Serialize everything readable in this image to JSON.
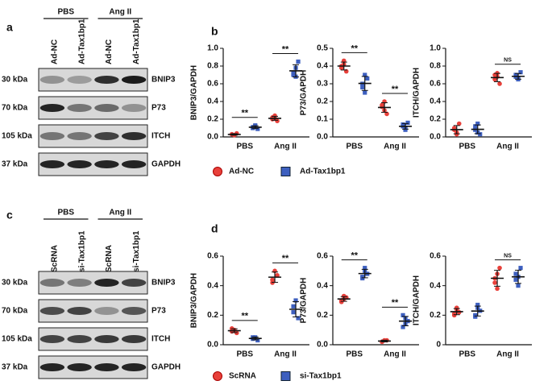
{
  "figure_labels": [
    "a",
    "b",
    "c",
    "d"
  ],
  "blots": [
    {
      "groups": [
        "PBS",
        "Ang II"
      ],
      "lanes": [
        "Ad-NC",
        "Ad-Tax1bp1",
        "Ad-NC",
        "Ad-Tax1bp1"
      ],
      "rows": [
        {
          "size": "30 kDa",
          "protein": "BNIP3"
        },
        {
          "size": "70 kDa",
          "protein": "P73"
        },
        {
          "size": "105 kDa",
          "protein": "ITCH"
        },
        {
          "size": "37 kDa",
          "protein": "GAPDH"
        }
      ]
    },
    {
      "groups": [
        "PBS",
        "Ang II"
      ],
      "lanes": [
        "ScRNA",
        "si-Tax1bp1",
        "ScRNA",
        "si-Tax1bp1"
      ],
      "rows": [
        {
          "size": "30 kDa",
          "protein": "BNIP3"
        },
        {
          "size": "70 kDa",
          "protein": "P73"
        },
        {
          "size": "105 kDa",
          "protein": "ITCH"
        },
        {
          "size": "37 kDa",
          "protein": "GAPDH"
        }
      ]
    }
  ],
  "chart_data": [
    {
      "type": "dot",
      "y_label": "BNIP3/GAPDH",
      "categories": [
        "PBS",
        "Ang II"
      ],
      "ylim": [
        0,
        1.0
      ],
      "yticks": [
        {
          "value": 0,
          "label": "0.0"
        },
        0.2,
        0.4,
        0.6,
        0.8,
        {
          "value": 1,
          "label": "1.0"
        }
      ],
      "annotations": [
        "**",
        "**"
      ],
      "series": [
        {
          "name": "Ad-NC",
          "color": "#e8403a",
          "values": [
            [
              0.03,
              0.02,
              0.04,
              0.03,
              0.02
            ],
            [
              0.2,
              0.24,
              0.18,
              0.22,
              0.21
            ]
          ]
        },
        {
          "name": "Ad-Tax1bp1",
          "color": "#3d5fbf",
          "values": [
            [
              0.1,
              0.12,
              0.09,
              0.11,
              0.13
            ],
            [
              0.7,
              0.78,
              0.85,
              0.72,
              0.68
            ]
          ]
        }
      ]
    },
    {
      "type": "dot",
      "y_label": "P73/GAPDH",
      "categories": [
        "PBS",
        "Ang II"
      ],
      "ylim": [
        0,
        0.5
      ],
      "yticks": [
        {
          "value": 0,
          "label": "0.0"
        },
        0.1,
        0.2,
        0.3,
        0.4,
        0.5
      ],
      "annotations": [
        "**",
        "**"
      ],
      "series": [
        {
          "color": "#e8403a",
          "values": [
            [
              0.4,
              0.43,
              0.37,
              0.39,
              0.41
            ],
            [
              0.17,
              0.2,
              0.13,
              0.18,
              0.15
            ]
          ]
        },
        {
          "color": "#3d5fbf",
          "values": [
            [
              0.3,
              0.25,
              0.33,
              0.28,
              0.35
            ],
            [
              0.06,
              0.05,
              0.08,
              0.07,
              0.04
            ]
          ]
        }
      ]
    },
    {
      "type": "dot",
      "y_label": "ITCH/GAPDH",
      "categories": [
        "PBS",
        "Ang II"
      ],
      "ylim": [
        0,
        1.0
      ],
      "yticks": [
        {
          "value": 0,
          "label": "0.0"
        },
        0.2,
        0.4,
        0.6,
        0.8,
        {
          "value": 1,
          "label": "1.0"
        }
      ],
      "annotations": [
        null,
        "NS"
      ],
      "series": [
        {
          "color": "#e8403a",
          "values": [
            [
              0.1,
              0.05,
              0.15,
              0.08,
              0.03
            ],
            [
              0.65,
              0.72,
              0.6,
              0.7,
              0.68
            ]
          ]
        },
        {
          "color": "#3d5fbf",
          "values": [
            [
              0.08,
              0.15,
              0.03,
              0.12,
              0.05
            ],
            [
              0.7,
              0.65,
              0.73,
              0.68,
              0.66
            ]
          ]
        }
      ]
    },
    {
      "type": "dot",
      "y_label": "BNIP3/GAPDH",
      "categories": [
        "PBS",
        "Ang II"
      ],
      "ylim": [
        0,
        0.6
      ],
      "yticks": [
        {
          "value": 0,
          "label": "0.0"
        },
        0.2,
        0.4,
        0.6
      ],
      "annotations": [
        "**",
        "**"
      ],
      "series": [
        {
          "name": "ScRNA",
          "color": "#e8403a",
          "values": [
            [
              0.09,
              0.1,
              0.08,
              0.11
            ],
            [
              0.44,
              0.5,
              0.47,
              0.42
            ]
          ]
        },
        {
          "name": "si-Tax1bp1",
          "color": "#3d5fbf",
          "values": [
            [
              0.04,
              0.05,
              0.03,
              0.05
            ],
            [
              0.22,
              0.3,
              0.18,
              0.26
            ]
          ]
        }
      ]
    },
    {
      "type": "dot",
      "y_label": "P73/GAPDH",
      "categories": [
        "PBS",
        "Ang II"
      ],
      "ylim": [
        0,
        0.6
      ],
      "yticks": [
        {
          "value": 0,
          "label": "0.0"
        },
        0.2,
        0.4,
        0.6
      ],
      "annotations": [
        "**",
        "**"
      ],
      "series": [
        {
          "color": "#e8403a",
          "values": [
            [
              0.3,
              0.33,
              0.32,
              0.29,
              0.31
            ],
            [
              0.02,
              0.03,
              0.03,
              0.02
            ]
          ]
        },
        {
          "color": "#3d5fbf",
          "values": [
            [
              0.46,
              0.5,
              0.48,
              0.45,
              0.52
            ],
            [
              0.12,
              0.18,
              0.16,
              0.2,
              0.14
            ]
          ]
        }
      ]
    },
    {
      "type": "dot",
      "y_label": "ITCH/GAPDH",
      "categories": [
        "PBS",
        "Ang II"
      ],
      "ylim": [
        0,
        0.6
      ],
      "yticks": [
        0,
        0.2,
        0.4,
        0.6
      ],
      "annotations": [
        null,
        "NS"
      ],
      "series": [
        {
          "color": "#e8403a",
          "values": [
            [
              0.21,
              0.24,
              0.22,
              0.2,
              0.25
            ],
            [
              0.45,
              0.38,
              0.52,
              0.42,
              0.48
            ]
          ]
        },
        {
          "color": "#3d5fbf",
          "values": [
            [
              0.2,
              0.25,
              0.23,
              0.19,
              0.27
            ],
            [
              0.48,
              0.4,
              0.52,
              0.44,
              0.46
            ]
          ]
        }
      ]
    }
  ]
}
